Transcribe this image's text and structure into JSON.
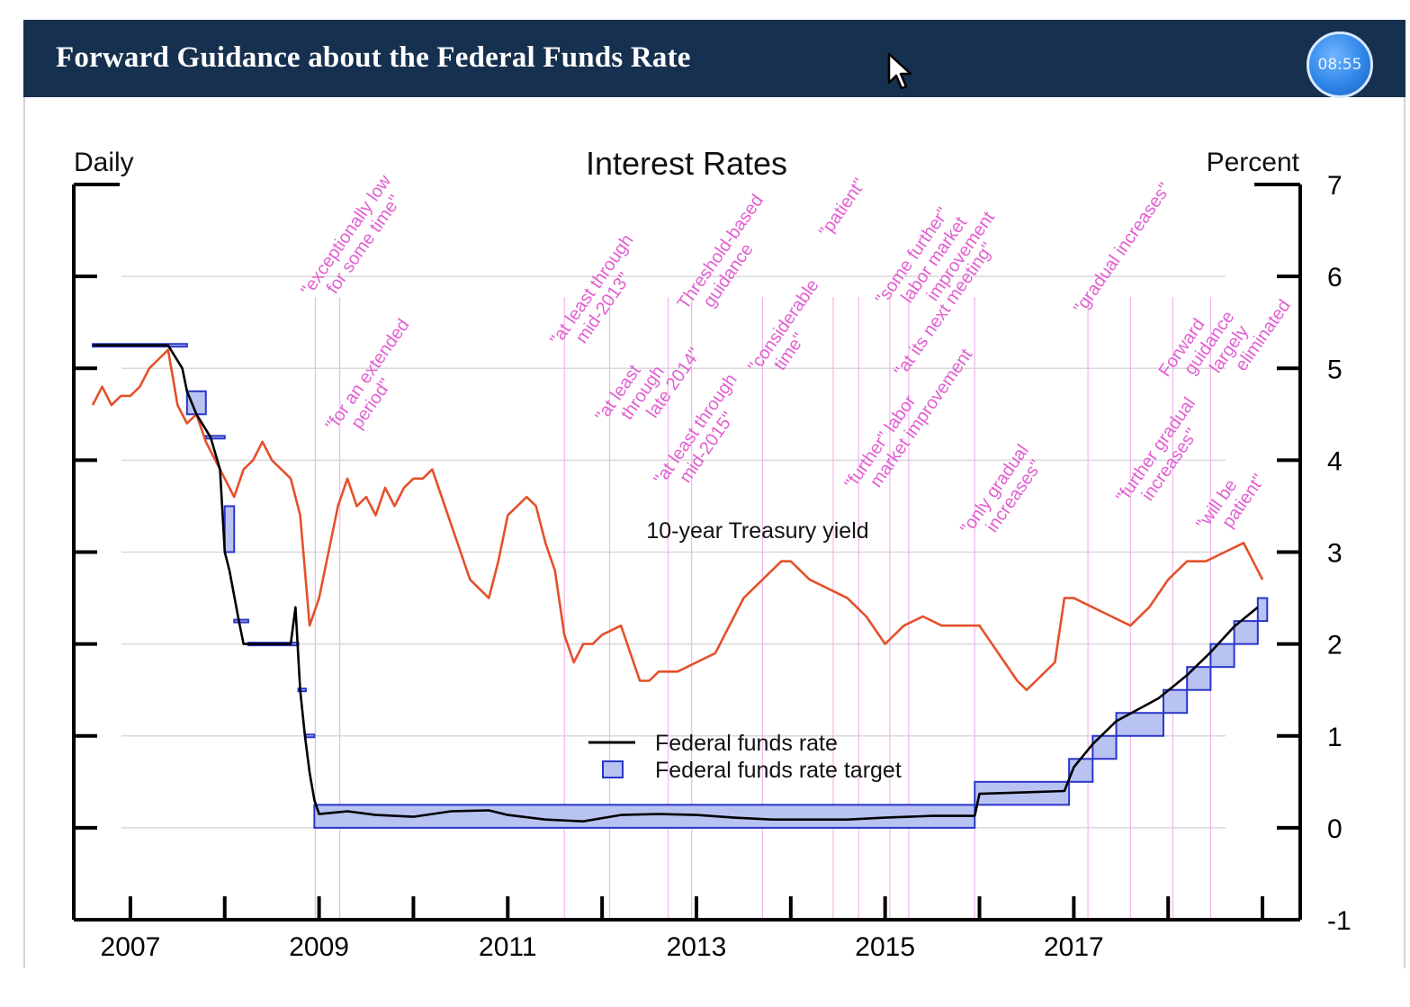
{
  "header": {
    "title": "Forward Guidance about the Federal Funds Rate",
    "timer": "08:55"
  },
  "chart_data": {
    "type": "line",
    "title": "Interest Rates",
    "left_label": "Daily",
    "right_label": "Percent",
    "xlim": [
      2006.4,
      2019.4
    ],
    "ylim": [
      -1,
      7
    ],
    "x_tick_labels": [
      "2007",
      "2009",
      "2011",
      "2013",
      "2015",
      "2017"
    ],
    "y_tick_labels": [
      "-1",
      "0",
      "1",
      "2",
      "3",
      "4",
      "5",
      "6",
      "7"
    ],
    "legend": [
      "Federal funds rate",
      "Federal funds rate target"
    ],
    "series_label_treasury": "10-year Treasury yield",
    "colors": {
      "treasury": "#e4502a",
      "fed_funds": "#000000",
      "target_fill": "#b9c3f2",
      "target_edge": "#2a36c8",
      "annotation": "#e35fd2",
      "grid": "#d9d9d9"
    },
    "series": [
      {
        "name": "10-year Treasury yield",
        "x": [
          2006.6,
          2006.7,
          2006.8,
          2006.9,
          2007.0,
          2007.1,
          2007.2,
          2007.3,
          2007.4,
          2007.45,
          2007.5,
          2007.6,
          2007.7,
          2007.8,
          2007.9,
          2008.0,
          2008.1,
          2008.2,
          2008.3,
          2008.4,
          2008.5,
          2008.6,
          2008.7,
          2008.8,
          2008.85,
          2008.9,
          2009.0,
          2009.1,
          2009.2,
          2009.3,
          2009.4,
          2009.5,
          2009.6,
          2009.7,
          2009.8,
          2009.9,
          2010.0,
          2010.1,
          2010.2,
          2010.3,
          2010.4,
          2010.5,
          2010.6,
          2010.7,
          2010.8,
          2010.9,
          2011.0,
          2011.1,
          2011.2,
          2011.3,
          2011.4,
          2011.5,
          2011.6,
          2011.7,
          2011.8,
          2011.9,
          2012.0,
          2012.2,
          2012.4,
          2012.5,
          2012.6,
          2012.8,
          2013.0,
          2013.2,
          2013.3,
          2013.5,
          2013.7,
          2013.9,
          2014.0,
          2014.2,
          2014.4,
          2014.6,
          2014.8,
          2015.0,
          2015.2,
          2015.4,
          2015.6,
          2015.8,
          2016.0,
          2016.2,
          2016.4,
          2016.5,
          2016.6,
          2016.8,
          2016.9,
          2017.0,
          2017.2,
          2017.4,
          2017.6,
          2017.8,
          2018.0,
          2018.2,
          2018.4,
          2018.6,
          2018.8,
          2018.9,
          2019.0
        ],
        "values": [
          4.6,
          4.8,
          4.6,
          4.7,
          4.7,
          4.8,
          5.0,
          5.1,
          5.2,
          4.9,
          4.6,
          4.4,
          4.5,
          4.2,
          4.0,
          3.8,
          3.6,
          3.9,
          4.0,
          4.2,
          4.0,
          3.9,
          3.8,
          3.4,
          2.8,
          2.2,
          2.5,
          3.0,
          3.5,
          3.8,
          3.5,
          3.6,
          3.4,
          3.7,
          3.5,
          3.7,
          3.8,
          3.8,
          3.9,
          3.6,
          3.3,
          3.0,
          2.7,
          2.6,
          2.5,
          2.9,
          3.4,
          3.5,
          3.6,
          3.5,
          3.1,
          2.8,
          2.1,
          1.8,
          2.0,
          2.0,
          2.1,
          2.2,
          1.6,
          1.6,
          1.7,
          1.7,
          1.8,
          1.9,
          2.1,
          2.5,
          2.7,
          2.9,
          2.9,
          2.7,
          2.6,
          2.5,
          2.3,
          2.0,
          2.2,
          2.3,
          2.2,
          2.2,
          2.2,
          1.9,
          1.6,
          1.5,
          1.6,
          1.8,
          2.5,
          2.5,
          2.4,
          2.3,
          2.2,
          2.4,
          2.7,
          2.9,
          2.9,
          3.0,
          3.1,
          2.9,
          2.7
        ]
      },
      {
        "name": "Federal funds rate",
        "x": [
          2006.6,
          2007.0,
          2007.4,
          2007.55,
          2007.6,
          2007.7,
          2007.85,
          2007.95,
          2008.0,
          2008.05,
          2008.15,
          2008.2,
          2008.3,
          2008.4,
          2008.5,
          2008.6,
          2008.7,
          2008.75,
          2008.8,
          2008.85,
          2008.9,
          2008.95,
          2009.0,
          2009.3,
          2009.6,
          2010.0,
          2010.4,
          2010.8,
          2011.0,
          2011.4,
          2011.8,
          2012.2,
          2012.6,
          2013.0,
          2013.4,
          2013.8,
          2014.2,
          2014.6,
          2015.0,
          2015.5,
          2015.95,
          2016.0,
          2016.9,
          2017.0,
          2017.2,
          2017.45,
          2017.9,
          2018.2,
          2018.45,
          2018.7,
          2018.95
        ],
        "values": [
          5.25,
          5.25,
          5.25,
          5.0,
          4.75,
          4.5,
          4.25,
          3.9,
          3.0,
          2.8,
          2.25,
          2.0,
          2.0,
          2.0,
          2.0,
          2.0,
          2.0,
          2.4,
          1.5,
          1.0,
          0.6,
          0.3,
          0.15,
          0.18,
          0.14,
          0.12,
          0.18,
          0.19,
          0.14,
          0.09,
          0.07,
          0.14,
          0.15,
          0.14,
          0.11,
          0.09,
          0.09,
          0.09,
          0.11,
          0.13,
          0.13,
          0.37,
          0.4,
          0.66,
          0.91,
          1.16,
          1.41,
          1.66,
          1.91,
          2.19,
          2.4
        ]
      }
    ],
    "target_ranges": [
      {
        "x0": 2006.6,
        "x1": 2007.6,
        "low": 5.25,
        "high": 5.25
      },
      {
        "x0": 2007.6,
        "x1": 2007.8,
        "low": 4.5,
        "high": 4.75
      },
      {
        "x0": 2007.8,
        "x1": 2008.0,
        "low": 4.25,
        "high": 4.25
      },
      {
        "x0": 2008.0,
        "x1": 2008.1,
        "low": 3.0,
        "high": 3.5
      },
      {
        "x0": 2008.1,
        "x1": 2008.25,
        "low": 2.25,
        "high": 2.25
      },
      {
        "x0": 2008.25,
        "x1": 2008.78,
        "low": 2.0,
        "high": 2.0
      },
      {
        "x0": 2008.78,
        "x1": 2008.86,
        "low": 1.5,
        "high": 1.5
      },
      {
        "x0": 2008.86,
        "x1": 2008.95,
        "low": 1.0,
        "high": 1.0
      },
      {
        "x0": 2008.95,
        "x1": 2015.95,
        "low": 0.0,
        "high": 0.25
      },
      {
        "x0": 2015.95,
        "x1": 2016.95,
        "low": 0.25,
        "high": 0.5
      },
      {
        "x0": 2016.95,
        "x1": 2017.2,
        "low": 0.5,
        "high": 0.75
      },
      {
        "x0": 2017.2,
        "x1": 2017.45,
        "low": 0.75,
        "high": 1.0
      },
      {
        "x0": 2017.45,
        "x1": 2017.95,
        "low": 1.0,
        "high": 1.25
      },
      {
        "x0": 2017.95,
        "x1": 2018.2,
        "low": 1.25,
        "high": 1.5
      },
      {
        "x0": 2018.2,
        "x1": 2018.45,
        "low": 1.5,
        "high": 1.75
      },
      {
        "x0": 2018.45,
        "x1": 2018.7,
        "low": 1.75,
        "high": 2.0
      },
      {
        "x0": 2018.7,
        "x1": 2018.95,
        "low": 2.0,
        "high": 2.25
      },
      {
        "x0": 2018.95,
        "x1": 2019.05,
        "low": 2.25,
        "high": 2.5
      }
    ],
    "annotations": [
      {
        "date": 2008.96,
        "lines": [
          "\"exceptionally low",
          "for some time\""
        ]
      },
      {
        "date": 2009.22,
        "lines": [
          "\"for an extended",
          "period\""
        ]
      },
      {
        "date": 2011.6,
        "lines": [
          "\"at least through",
          "mid-2013\""
        ]
      },
      {
        "date": 2012.08,
        "lines": [
          "\"at least",
          "through",
          "late 2014\""
        ]
      },
      {
        "date": 2012.7,
        "lines": [
          "\"at least through",
          "mid-2015\""
        ]
      },
      {
        "date": 2012.95,
        "lines": [
          "Threshold-based",
          "guidance"
        ]
      },
      {
        "date": 2013.7,
        "lines": [
          "\"considerable",
          "time\""
        ]
      },
      {
        "date": 2014.45,
        "lines": [
          "\"patient\""
        ]
      },
      {
        "date": 2014.72,
        "lines": [
          "\"further\" labor",
          "market improvement"
        ]
      },
      {
        "date": 2015.05,
        "lines": [
          "\"some further\"",
          "labor market",
          "improvement"
        ]
      },
      {
        "date": 2015.25,
        "lines": [
          "\"at its next meeting\""
        ]
      },
      {
        "date": 2015.95,
        "lines": [
          "\"only gradual",
          "increases\""
        ]
      },
      {
        "date": 2017.15,
        "lines": [
          "\"gradual increases\""
        ]
      },
      {
        "date": 2017.6,
        "lines": [
          "\"further gradual",
          "increases\""
        ]
      },
      {
        "date": 2018.05,
        "lines": [
          "Forward",
          "guidance",
          "largely",
          "eliminated"
        ]
      },
      {
        "date": 2018.45,
        "lines": [
          "\"will be",
          "patient\""
        ]
      }
    ]
  }
}
